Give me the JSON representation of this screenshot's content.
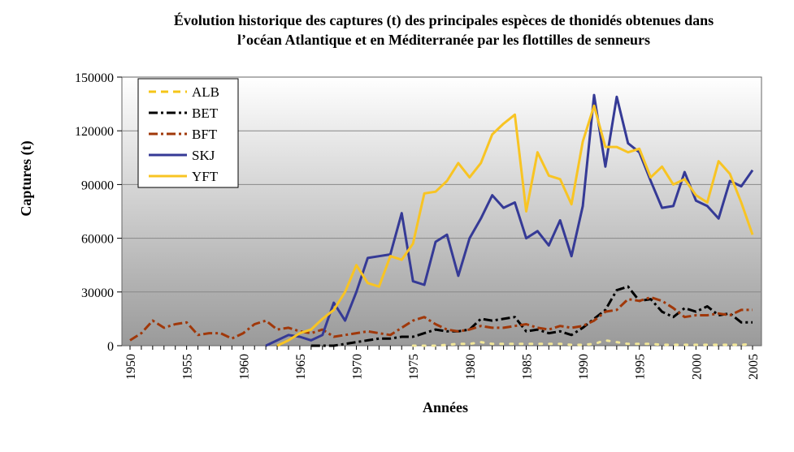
{
  "chart_data": {
    "type": "line",
    "title_lines": [
      "Évolution historique des captures (t) des principales espèces de thonidés obtenues dans",
      "l’océan Atlantique et en Méditerranée par les flottilles de senneurs"
    ],
    "xlabel": "Années",
    "ylabel": "Captures (t)",
    "xlim": [
      1950,
      2005
    ],
    "ylim": [
      0,
      150000
    ],
    "x_ticks": [
      1950,
      1955,
      1960,
      1965,
      1970,
      1975,
      1980,
      1985,
      1990,
      1995,
      2000,
      2005
    ],
    "y_ticks": [
      0,
      30000,
      60000,
      90000,
      120000,
      150000
    ],
    "legend_position": "top-left",
    "series": [
      {
        "name": "ALB",
        "color": "#f5c518",
        "dash": "dashed",
        "x": [
          1975,
          1976,
          1977,
          1978,
          1979,
          1980,
          1981,
          1982,
          1983,
          1984,
          1985,
          1986,
          1987,
          1988,
          1989,
          1990,
          1991,
          1992,
          1993,
          1994,
          1995,
          1996,
          1997,
          1998,
          1999,
          2000,
          2001,
          2002,
          2003,
          2004,
          2005
        ],
        "values": [
          0,
          0,
          0,
          500,
          1000,
          1000,
          2000,
          1000,
          1000,
          1000,
          1000,
          1000,
          1000,
          1000,
          500,
          500,
          1000,
          3000,
          2000,
          1000,
          1000,
          1000,
          500,
          500,
          500,
          500,
          500,
          500,
          500,
          500,
          1000
        ]
      },
      {
        "name": "BET",
        "color": "#000000",
        "dash": "dashdot",
        "x": [
          1966,
          1967,
          1968,
          1969,
          1970,
          1971,
          1972,
          1973,
          1974,
          1975,
          1976,
          1977,
          1978,
          1979,
          1980,
          1981,
          1982,
          1983,
          1984,
          1985,
          1986,
          1987,
          1988,
          1989,
          1990,
          1991,
          1992,
          1993,
          1994,
          1995,
          1996,
          1997,
          1998,
          1999,
          2000,
          2001,
          2002,
          2003,
          2004,
          2005
        ],
        "values": [
          0,
          0,
          0,
          1000,
          2000,
          3000,
          4000,
          4000,
          5000,
          5000,
          7000,
          9000,
          8000,
          8000,
          9000,
          15000,
          14000,
          15000,
          16000,
          8000,
          9000,
          7000,
          8000,
          6000,
          10000,
          15000,
          20000,
          31000,
          33000,
          25000,
          26000,
          19000,
          16000,
          21000,
          19000,
          22000,
          17000,
          18000,
          13000,
          13000
        ]
      },
      {
        "name": "BFT",
        "color": "#a0380a",
        "dash": "dashdot",
        "x": [
          1950,
          1951,
          1952,
          1953,
          1954,
          1955,
          1956,
          1957,
          1958,
          1959,
          1960,
          1961,
          1962,
          1963,
          1964,
          1965,
          1966,
          1967,
          1968,
          1969,
          1970,
          1971,
          1972,
          1973,
          1974,
          1975,
          1976,
          1977,
          1978,
          1979,
          1980,
          1981,
          1982,
          1983,
          1984,
          1985,
          1986,
          1987,
          1988,
          1989,
          1990,
          1991,
          1992,
          1993,
          1994,
          1995,
          1996,
          1997,
          1998,
          1999,
          2000,
          2001,
          2002,
          2003,
          2004,
          2005
        ],
        "values": [
          3000,
          7000,
          14000,
          10000,
          12000,
          13000,
          6000,
          7000,
          7000,
          4000,
          7000,
          12000,
          14000,
          9000,
          10000,
          8000,
          7000,
          9000,
          5000,
          6000,
          7000,
          8000,
          7000,
          6000,
          10000,
          14000,
          16000,
          12000,
          9000,
          8000,
          9000,
          11000,
          10000,
          10000,
          11000,
          12000,
          10000,
          9000,
          11000,
          10000,
          11000,
          14000,
          19000,
          20000,
          26000,
          25000,
          27000,
          25000,
          21000,
          16000,
          17000,
          17000,
          18000,
          17000,
          20000,
          20000
        ]
      },
      {
        "name": "SKJ",
        "color": "#353a96",
        "dash": "solid",
        "x": [
          1962,
          1963,
          1964,
          1965,
          1966,
          1967,
          1968,
          1969,
          1970,
          1971,
          1972,
          1973,
          1974,
          1975,
          1976,
          1977,
          1978,
          1979,
          1980,
          1981,
          1982,
          1983,
          1984,
          1985,
          1986,
          1987,
          1988,
          1989,
          1990,
          1991,
          1992,
          1993,
          1994,
          1995,
          1996,
          1997,
          1998,
          1999,
          2000,
          2001,
          2002,
          2003,
          2004,
          2005
        ],
        "values": [
          0,
          3000,
          6000,
          5000,
          3000,
          6000,
          24000,
          14000,
          30000,
          49000,
          50000,
          51000,
          74000,
          36000,
          34000,
          58000,
          62000,
          39000,
          60000,
          71000,
          84000,
          77000,
          80000,
          60000,
          64000,
          56000,
          70000,
          50000,
          78000,
          140000,
          100000,
          139000,
          113000,
          108000,
          92000,
          77000,
          78000,
          97000,
          81000,
          78000,
          71000,
          92000,
          89000,
          98000
        ]
      },
      {
        "name": "YFT",
        "color": "#f8c423",
        "dash": "solid",
        "x": [
          1963,
          1964,
          1965,
          1966,
          1967,
          1968,
          1969,
          1970,
          1971,
          1972,
          1973,
          1974,
          1975,
          1976,
          1977,
          1978,
          1979,
          1980,
          1981,
          1982,
          1983,
          1984,
          1985,
          1986,
          1987,
          1988,
          1989,
          1990,
          1991,
          1992,
          1993,
          1994,
          1995,
          1996,
          1997,
          1998,
          1999,
          2000,
          2001,
          2002,
          2003,
          2004,
          2005
        ],
        "values": [
          0,
          3000,
          7000,
          9000,
          15000,
          20000,
          30000,
          45000,
          35000,
          33000,
          50000,
          48000,
          57000,
          85000,
          86000,
          92000,
          102000,
          94000,
          102000,
          118000,
          124000,
          129000,
          75000,
          108000,
          95000,
          93000,
          79000,
          114000,
          134000,
          111000,
          111000,
          108000,
          110000,
          94000,
          100000,
          90000,
          93000,
          84000,
          80000,
          103000,
          96000,
          80000,
          62000
        ]
      }
    ]
  }
}
